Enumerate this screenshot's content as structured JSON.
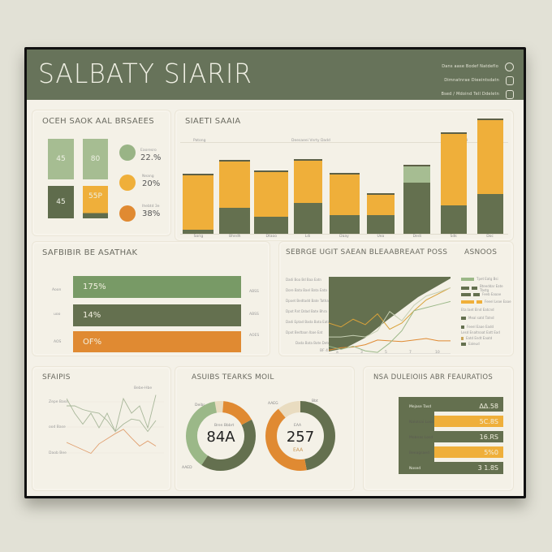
{
  "header": {
    "title": "SALBATY  SIARIR",
    "links": [
      {
        "label": "Dans aase  Bodef Natdeflo",
        "icon": "info-icon"
      },
      {
        "label": "Dimnatnrae Dieeintsdatn",
        "icon": "document-icon"
      },
      {
        "label": "Bsed / Mdoind  Tell Ddeletn",
        "icon": "calendar-icon"
      }
    ]
  },
  "colors": {
    "header": "#67735a",
    "dark_green": "#64704f",
    "sage": "#a6bd92",
    "mid_green": "#789a66",
    "amber": "#efaf3a",
    "orange": "#e08a32",
    "cream": "#f4f1e7",
    "beige": "#e9dcc0"
  },
  "kpi_panel": {
    "title": "OCEH SAOK AAL BRSAEES",
    "squares": [
      {
        "value": "45",
        "color": "#a6bd92"
      },
      {
        "value": "80",
        "color": "#a6bd92"
      },
      {
        "value": "45",
        "color": "#5f6c4c"
      },
      {
        "value": "55P",
        "color": "#efaf3a"
      }
    ],
    "stats": [
      {
        "label": "Eaoresro",
        "value": "22.%",
        "color": "#99b486"
      },
      {
        "label": "Neang",
        "value": "20%",
        "color": "#efaf3a"
      },
      {
        "label": "Ihebtd 3e",
        "value": "38%",
        "color": "#e08a32"
      }
    ]
  },
  "bar_panel": {
    "title": "SIAETI SAAIA",
    "ref_labels": [
      "Patong",
      "Deesaeei Vnrty Dadd",
      "Baoatd"
    ]
  },
  "hbar_panel": {
    "title": "SAFBIBIR  BE  ASATHAK",
    "rows": [
      {
        "left": "Aoon",
        "value": "175%",
        "right": "ABSS",
        "color": "#789a66"
      },
      {
        "left": "uoo",
        "value": "14%",
        "right": "ABSS",
        "color": "#64704f"
      },
      {
        "left": "AOS",
        "value": "OF%",
        "right": "AOES",
        "color": "#e08a32"
      }
    ]
  },
  "line_panel": {
    "title": "SEBRGE UGIT SAEAN  BLEAABREAAT POSS",
    "legend_title": "ASNOOS",
    "y_labels": [
      "Dadi Boa Bd Baa Eatn",
      "Dore Bata Bael Bata Eata",
      "Dpoet Bedtadd Bate Tatha",
      "Dpot Rnt Ddad Bate Bhra",
      "Dadi Eptad Bada Bata Eata",
      "Dpot Bedtaan Ibae Eat",
      "Dada Bata Bote Dete"
    ],
    "x_labels": [
      "a",
      "3",
      "5",
      "7",
      "10"
    ],
    "origin_label": "BF 4",
    "legend": [
      {
        "label": "Tpet Eatg Bsi",
        "color": "#9bb888"
      },
      {
        "label": "Bteeddar Eate Tbstg",
        "color": "#64704f"
      },
      {
        "label": "Feeb Eaaae",
        "color": "#64704f"
      },
      {
        "label": "Feeel Leae Eaae",
        "color": "#efaf3a"
      },
      {
        "label": "Eta:laet  Elnd  Eatcnd",
        "color": "#e9dcc0"
      },
      {
        "label": "Meal satd Tatnd",
        "color": "#64704f"
      },
      {
        "label": "Feeel Eaae Eadd",
        "color": "#64704f"
      },
      {
        "label": "Lesd Enaltnaat Eatt Ead",
        "color": "#e9dcc0"
      },
      {
        "label": "Eatd Endt Eaatd",
        "color": "#c9a55a"
      },
      {
        "label": "Ealeud",
        "color": "#64704f"
      }
    ]
  },
  "small_line_panel": {
    "title": "SFAIPIS",
    "y_labels": [
      "Zepe Base",
      "ood Base",
      "Daob Bee"
    ],
    "annotation": "Bebe-Hbe"
  },
  "donut_panel": {
    "title": "ASUIBS  TEARKS  MOIL",
    "donuts": [
      {
        "value": "84A",
        "sub": "Bren Bbbrt",
        "top_label": "Deibr",
        "bottom_label": "AAED",
        "segments": [
          {
            "pct": 4,
            "color": "#e9dcc0"
          },
          {
            "pct": 16,
            "color": "#e08a32"
          },
          {
            "pct": 42,
            "color": "#64704f"
          },
          {
            "pct": 38,
            "color": "#9bb888"
          }
        ]
      },
      {
        "value": "257",
        "sub": "EAA",
        "top_label": "Bbt",
        "left_label": "AAEG",
        "segments": [
          {
            "pct": 47,
            "color": "#64704f"
          },
          {
            "pct": 42,
            "color": "#e08a32"
          },
          {
            "pct": 11,
            "color": "#e9dcc0"
          }
        ]
      }
    ]
  },
  "metrics_panel": {
    "title": "NSA  DULEIOIIS  ABR  FEAURATIOS",
    "rows": [
      {
        "label": "Mejase Tasd",
        "value": "ΔΔ.58",
        "color": "#64704f",
        "width": "full"
      },
      {
        "label": "Nalotsai Losd",
        "value": "5C.8S",
        "color": "#efaf3a",
        "width": "partial"
      },
      {
        "label": "Mobnas Losd",
        "value": "16.RS",
        "color": "#64704f",
        "width": "partial"
      },
      {
        "label": "Beeagsaed",
        "value": "5%0",
        "color": "#efaf3a",
        "width": "partial"
      },
      {
        "label": "Nosed",
        "value": "3 1.8S",
        "color": "#64704f",
        "width": "full"
      }
    ]
  },
  "chart_data": [
    {
      "type": "bar",
      "title": "SIAETI SAAIA",
      "categories": [
        "Sorig",
        "Bhedh",
        "Dtaoo",
        "Ldi",
        "Daay",
        "Uea",
        "Dedi",
        "Sdk",
        "Doc"
      ],
      "series": [
        {
          "name": "base",
          "color": "#64704f",
          "values": [
            5,
            30,
            20,
            36,
            22,
            22,
            60,
            33,
            47
          ]
        },
        {
          "name": "top",
          "color": "#efaf3a",
          "values": [
            63,
            55,
            52,
            50,
            47,
            24,
            19,
            84,
            86
          ]
        }
      ],
      "ylim": [
        0,
        135
      ]
    },
    {
      "type": "bar",
      "orientation": "horizontal",
      "title": "SAFBIBIR  BE  ASATHAK",
      "categories": [
        "Aoon",
        "uoo",
        "AOS"
      ],
      "values": [
        175,
        14,
        0
      ],
      "value_labels": [
        "175%",
        "14%",
        "OF%"
      ]
    },
    {
      "type": "line",
      "title": "SEBRGE UGIT SAEAN  BLEAABREAAT POSS",
      "x": [
        0,
        1,
        2,
        3,
        4,
        5,
        6,
        7,
        8,
        9,
        10
      ],
      "series": [
        {
          "name": "amber-jagged",
          "color": "#d9a23a",
          "values": [
            40,
            35,
            45,
            38,
            52,
            32,
            40,
            56,
            70,
            78,
            86
          ]
        },
        {
          "name": "sage",
          "color": "#c6cfb3",
          "values": [
            22,
            22,
            24,
            22,
            30,
            55,
            43,
            63,
            75,
            80,
            86
          ]
        },
        {
          "name": "orange",
          "color": "#e08a32",
          "values": [
            5,
            8,
            9,
            12,
            18,
            17,
            16,
            18,
            20,
            17,
            17
          ]
        },
        {
          "name": "light-green",
          "color": "#9bb888",
          "values": [
            10,
            6,
            10,
            4,
            2,
            14,
            30,
            56,
            60,
            64,
            68
          ]
        }
      ],
      "ylim": [
        0,
        100
      ]
    },
    {
      "type": "line",
      "title": "SFAIPIS",
      "series": [
        {
          "name": "sage-1",
          "color": "#a8b79a",
          "values": [
            90,
            70,
            55,
            70,
            50,
            70,
            45,
            90,
            70,
            80,
            50,
            95
          ]
        },
        {
          "name": "sage-2",
          "color": "#a8b79a",
          "values": [
            80,
            80,
            75,
            72,
            70,
            60,
            45,
            55,
            62,
            60,
            45,
            60
          ]
        },
        {
          "name": "orange",
          "color": "#e0a070",
          "values": [
            30,
            25,
            20,
            15,
            28,
            35,
            42,
            48,
            36,
            25,
            32,
            25
          ]
        }
      ]
    },
    {
      "type": "pie",
      "title": "ASUIBS  TEARKS  MOIL",
      "charts": [
        {
          "center": "84A",
          "slices": [
            4,
            16,
            42,
            38
          ]
        },
        {
          "center": "257",
          "slices": [
            47,
            42,
            11
          ]
        }
      ]
    },
    {
      "type": "bar",
      "orientation": "horizontal",
      "title": "NSA  DULEIOIIS  ABR  FEAURATIOS",
      "categories": [
        "Mejase Tasd",
        "Nalotsai Losd",
        "Mobnas Losd",
        "Beeagsaed",
        "Nosed"
      ],
      "value_labels": [
        "ΔΔ.58",
        "5C.8S",
        "16.RS",
        "5%0",
        "3 1.8S"
      ]
    }
  ]
}
